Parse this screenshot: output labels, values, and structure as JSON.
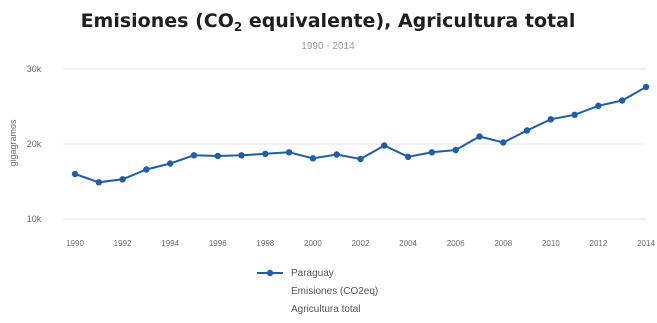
{
  "chart_data": {
    "type": "line",
    "title_main": "Emisiones (CO",
    "title_subscript": "2",
    "title_rest": " equivalente), Agricultura total",
    "subtitle": "1990 - 2014",
    "ylabel": "gigagramos",
    "ylim": [
      10000,
      30000
    ],
    "yticks": [
      {
        "value": 10000,
        "label": "10k"
      },
      {
        "value": 20000,
        "label": "20k"
      },
      {
        "value": 30000,
        "label": "30k"
      }
    ],
    "xlim": [
      1990,
      2014
    ],
    "xtick_labels": [
      "1990",
      "1992",
      "1994",
      "1996",
      "1998",
      "2000",
      "2002",
      "2004",
      "2006",
      "2008",
      "2010",
      "2012",
      "2014"
    ],
    "grid": true,
    "legend_position": "bottom-center",
    "series": [
      {
        "name": "Paraguay",
        "legend_lines": [
          "Paraguay",
          "Emisiones (CO2eq)",
          "Agricultura total"
        ],
        "color": "#1f5fa8",
        "x": [
          1990,
          1991,
          1992,
          1993,
          1994,
          1995,
          1996,
          1997,
          1998,
          1999,
          2000,
          2001,
          2002,
          2003,
          2004,
          2005,
          2006,
          2007,
          2008,
          2009,
          2010,
          2011,
          2012,
          2013,
          2014
        ],
        "values": [
          16000,
          14900,
          15300,
          16600,
          17400,
          18500,
          18400,
          18500,
          18700,
          18900,
          18100,
          18600,
          18000,
          19800,
          18300,
          18900,
          19200,
          21000,
          20200,
          21800,
          23300,
          23900,
          25100,
          25800,
          27600
        ]
      }
    ]
  }
}
